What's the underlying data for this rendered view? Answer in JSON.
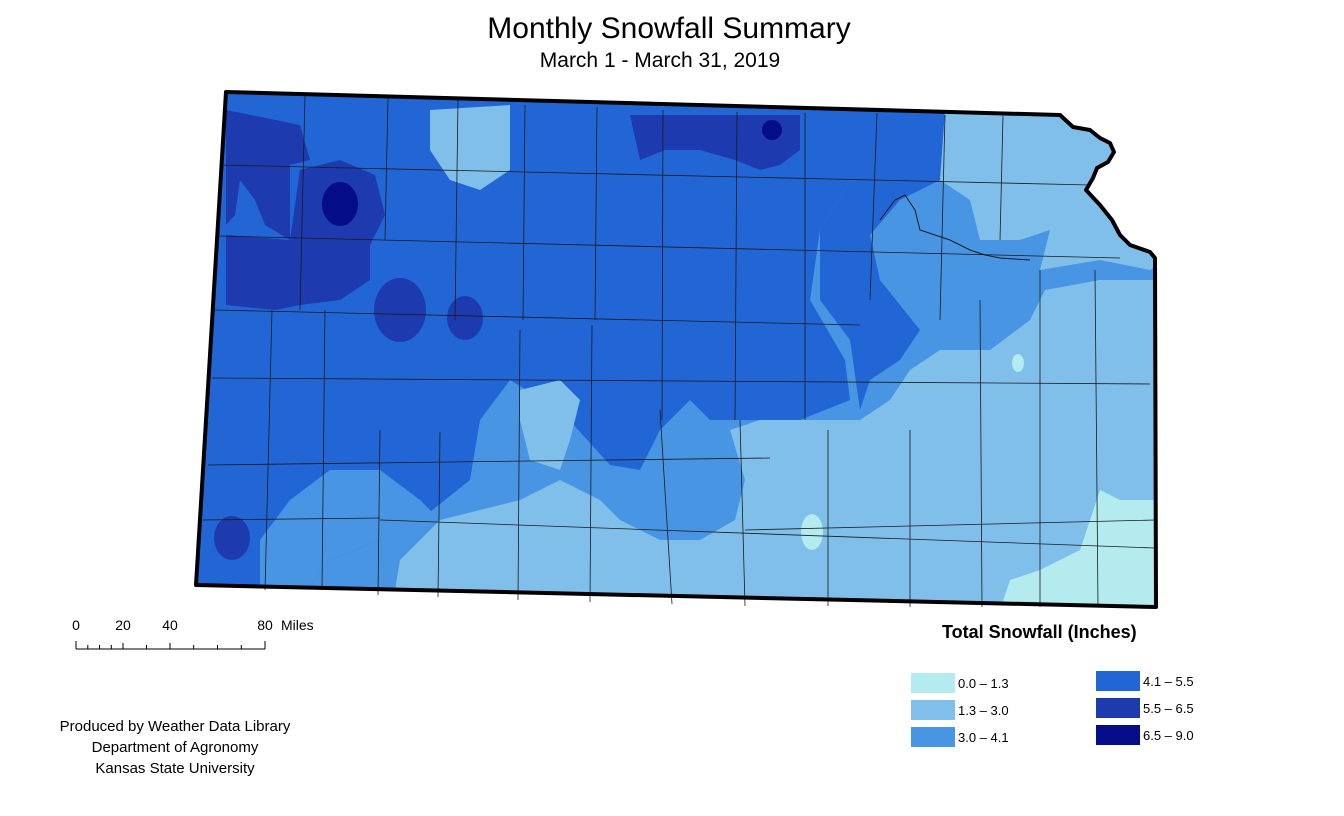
{
  "header": {
    "title": "Monthly Snowfall Summary",
    "subtitle": "March 1 - March 31, 2019"
  },
  "scale_bar": {
    "ticks": [
      "0",
      "20",
      "40",
      "80"
    ],
    "unit": "Miles"
  },
  "legend": {
    "title": "Total Snowfall (Inches)",
    "items": [
      {
        "label": "0.0 – 1.3",
        "color": "#b3ebee"
      },
      {
        "label": "1.3 – 3.0",
        "color": "#7fbfea"
      },
      {
        "label": "3.0 – 4.1",
        "color": "#4895e3"
      },
      {
        "label": "4.1 – 5.5",
        "color": "#2266d5"
      },
      {
        "label": "5.5 – 6.5",
        "color": "#1d3aaf"
      },
      {
        "label": "6.5 – 9.0",
        "color": "#050c88"
      }
    ]
  },
  "credits": {
    "line1": "Produced by Weather Data Library",
    "line2": "Department of Agronomy",
    "line3": "Kansas State University"
  }
}
